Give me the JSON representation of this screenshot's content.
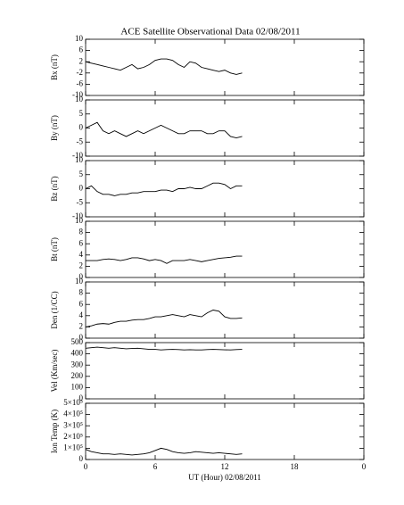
{
  "chart_data": [
    {
      "type": "line",
      "title": "ACE Satellite Observational Data   02/08/2011",
      "ylabel": "Bx (nT)",
      "color": "#000000",
      "xlim": [
        0,
        24
      ],
      "xticks": [
        0,
        6,
        12,
        18,
        {
          "value": 24,
          "label": "0"
        }
      ],
      "ylim": [
        -10,
        10
      ],
      "yticks": [
        -10,
        -6,
        -2,
        2,
        6,
        10
      ],
      "x": [
        0,
        0.5,
        1,
        1.5,
        2,
        2.5,
        3,
        3.5,
        4,
        4.5,
        5,
        5.5,
        6,
        6.5,
        7,
        7.5,
        8,
        8.5,
        9,
        9.5,
        10,
        10.5,
        11,
        11.5,
        12,
        12.5,
        13,
        13.5
      ],
      "values": [
        2,
        1.5,
        1,
        0.5,
        0,
        -0.5,
        -1,
        0,
        1,
        -0.5,
        0,
        1,
        2.5,
        3,
        3,
        2.5,
        1,
        0,
        2,
        1.5,
        0,
        -0.5,
        -1,
        -1.5,
        -1,
        -2,
        -2.5,
        -2
      ]
    },
    {
      "type": "line",
      "ylabel": "By (nT)",
      "color": "#000000",
      "xlim": [
        0,
        24
      ],
      "xticks": [
        0,
        6,
        12,
        18,
        {
          "value": 24,
          "label": "0"
        }
      ],
      "ylim": [
        -10,
        10
      ],
      "yticks": [
        -10,
        -5,
        0,
        5,
        10
      ],
      "x": [
        0,
        0.5,
        1,
        1.5,
        2,
        2.5,
        3,
        3.5,
        4,
        4.5,
        5,
        5.5,
        6,
        6.5,
        7,
        7.5,
        8,
        8.5,
        9,
        9.5,
        10,
        10.5,
        11,
        11.5,
        12,
        12.5,
        13,
        13.5
      ],
      "values": [
        0,
        1,
        2,
        -1,
        -2,
        -1,
        -2,
        -3,
        -2,
        -1,
        -2,
        -1,
        0,
        1,
        0,
        -1,
        -2,
        -2,
        -1,
        -1,
        -1,
        -2,
        -2,
        -1,
        -1,
        -3,
        -3.5,
        -3
      ]
    },
    {
      "type": "line",
      "ylabel": "Bz (nT)",
      "color": "#000000",
      "xlim": [
        0,
        24
      ],
      "xticks": [
        0,
        6,
        12,
        18,
        {
          "value": 24,
          "label": "0"
        }
      ],
      "ylim": [
        -10,
        10
      ],
      "yticks": [
        -10,
        -5,
        0,
        5,
        10
      ],
      "x": [
        0,
        0.5,
        1,
        1.5,
        2,
        2.5,
        3,
        3.5,
        4,
        4.5,
        5,
        5.5,
        6,
        6.5,
        7,
        7.5,
        8,
        8.5,
        9,
        9.5,
        10,
        10.5,
        11,
        11.5,
        12,
        12.5,
        13,
        13.5
      ],
      "values": [
        0,
        1,
        -1,
        -2,
        -2,
        -2.5,
        -2,
        -2,
        -1.5,
        -1.5,
        -1,
        -1,
        -1,
        -0.5,
        -0.5,
        -1,
        0,
        0,
        0.5,
        0,
        0,
        1,
        2,
        2,
        1.5,
        0,
        1,
        1
      ]
    },
    {
      "type": "line",
      "ylabel": "Bt (nT)",
      "color": "#000000",
      "xlim": [
        0,
        24
      ],
      "xticks": [
        0,
        6,
        12,
        18,
        {
          "value": 24,
          "label": "0"
        }
      ],
      "ylim": [
        0,
        10
      ],
      "yticks": [
        0,
        2,
        4,
        6,
        8,
        10
      ],
      "x": [
        0,
        0.5,
        1,
        1.5,
        2,
        2.5,
        3,
        3.5,
        4,
        4.5,
        5,
        5.5,
        6,
        6.5,
        7,
        7.5,
        8,
        8.5,
        9,
        9.5,
        10,
        10.5,
        11,
        11.5,
        12,
        12.5,
        13,
        13.5
      ],
      "values": [
        3,
        3,
        3,
        3.2,
        3.3,
        3.2,
        3,
        3.2,
        3.5,
        3.5,
        3.3,
        3,
        3.2,
        3,
        2.5,
        3,
        3,
        3,
        3.2,
        3,
        2.8,
        3,
        3.2,
        3.4,
        3.5,
        3.6,
        3.8,
        3.8
      ]
    },
    {
      "type": "line",
      "ylabel": "Den (1/CC)",
      "color": "#000000",
      "xlim": [
        0,
        24
      ],
      "xticks": [
        0,
        6,
        12,
        18,
        {
          "value": 24,
          "label": "0"
        }
      ],
      "ylim": [
        0,
        10
      ],
      "yticks": [
        0,
        2,
        4,
        6,
        8,
        10
      ],
      "x": [
        0,
        0.5,
        1,
        1.5,
        2,
        2.5,
        3,
        3.5,
        4,
        4.5,
        5,
        5.5,
        6,
        6.5,
        7,
        7.5,
        8,
        8.5,
        9,
        9.5,
        10,
        10.5,
        11,
        11.5,
        12,
        12.5,
        13,
        13.5
      ],
      "values": [
        2,
        2.2,
        2.5,
        2.6,
        2.5,
        2.8,
        3,
        3,
        3.2,
        3.3,
        3.3,
        3.5,
        3.8,
        3.8,
        4,
        4.2,
        4,
        3.8,
        4.2,
        4,
        3.8,
        4.5,
        5,
        4.8,
        3.8,
        3.5,
        3.5,
        3.6
      ]
    },
    {
      "type": "line",
      "ylabel": "Vel (Km/sec)",
      "color": "#000000",
      "xlim": [
        0,
        24
      ],
      "xticks": [
        0,
        6,
        12,
        18,
        {
          "value": 24,
          "label": "0"
        }
      ],
      "ylim": [
        0,
        500
      ],
      "yticks": [
        0,
        100,
        200,
        300,
        400,
        500
      ],
      "x": [
        0,
        0.5,
        1,
        1.5,
        2,
        2.5,
        3,
        3.5,
        4,
        4.5,
        5,
        5.5,
        6,
        6.5,
        7,
        7.5,
        8,
        8.5,
        9,
        9.5,
        10,
        10.5,
        11,
        11.5,
        12,
        12.5,
        13,
        13.5
      ],
      "values": [
        450,
        455,
        460,
        455,
        450,
        455,
        450,
        445,
        448,
        450,
        445,
        440,
        440,
        435,
        438,
        440,
        438,
        435,
        437,
        435,
        435,
        438,
        440,
        438,
        436,
        435,
        438,
        440
      ]
    },
    {
      "type": "line",
      "ylabel": "Ion Temp (K)",
      "xlabel": "UT (Hour)   02/08/2011",
      "color": "#000000",
      "xlim": [
        0,
        24
      ],
      "xticks": [
        0,
        6,
        12,
        18,
        {
          "value": 24,
          "label": "0"
        }
      ],
      "ylim": [
        0,
        500000
      ],
      "yticks": [
        0,
        {
          "value": 100000,
          "label": "1×10⁵"
        },
        {
          "value": 200000,
          "label": "2×10⁵"
        },
        {
          "value": 300000,
          "label": "3×10⁵"
        },
        {
          "value": 400000,
          "label": "4×10⁵"
        },
        {
          "value": 500000,
          "label": "5×10⁵"
        }
      ],
      "x": [
        0,
        0.5,
        1,
        1.5,
        2,
        2.5,
        3,
        3.5,
        4,
        4.5,
        5,
        5.5,
        6,
        6.5,
        7,
        7.5,
        8,
        8.5,
        9,
        9.5,
        10,
        10.5,
        11,
        11.5,
        12,
        12.5,
        13,
        13.5
      ],
      "values": [
        90000,
        70000,
        60000,
        50000,
        50000,
        45000,
        50000,
        45000,
        40000,
        45000,
        50000,
        60000,
        80000,
        100000,
        90000,
        70000,
        60000,
        55000,
        60000,
        70000,
        65000,
        60000,
        55000,
        60000,
        55000,
        50000,
        45000,
        50000
      ]
    }
  ]
}
